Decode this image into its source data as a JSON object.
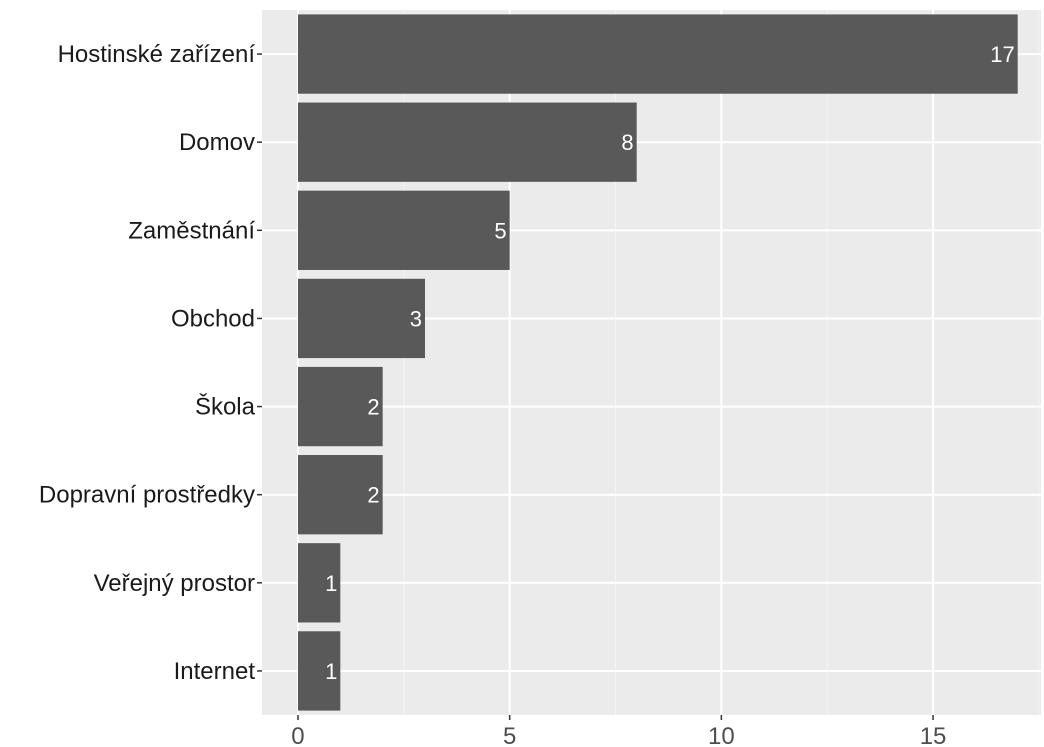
{
  "chart_data": {
    "type": "bar",
    "orientation": "horizontal",
    "title": "",
    "xlabel": "",
    "ylabel": "",
    "categories": [
      "Hostinské zařízení",
      "Domov",
      "Zaměstnání",
      "Obchod",
      "Škola",
      "Dopravní prostředky",
      "Veřejný prostor",
      "Internet"
    ],
    "values": [
      17,
      8,
      5,
      3,
      2,
      2,
      1,
      1
    ],
    "data_labels": [
      "17",
      "8",
      "5",
      "3",
      "2",
      "2",
      "1",
      "1"
    ],
    "xlim": [
      -0.85,
      17.55
    ],
    "x_ticks": [
      0,
      5,
      10,
      15
    ],
    "x_tick_labels": [
      "0",
      "5",
      "10",
      "15"
    ],
    "grid": true,
    "legend": "none"
  },
  "colors": {
    "panel_background": "#ebebeb",
    "grid_major": "#ffffff",
    "grid_minor": "#f5f5f5",
    "bar_fill": "#595959",
    "bar_label": "#ffffff",
    "axis_tick": "#333333"
  }
}
